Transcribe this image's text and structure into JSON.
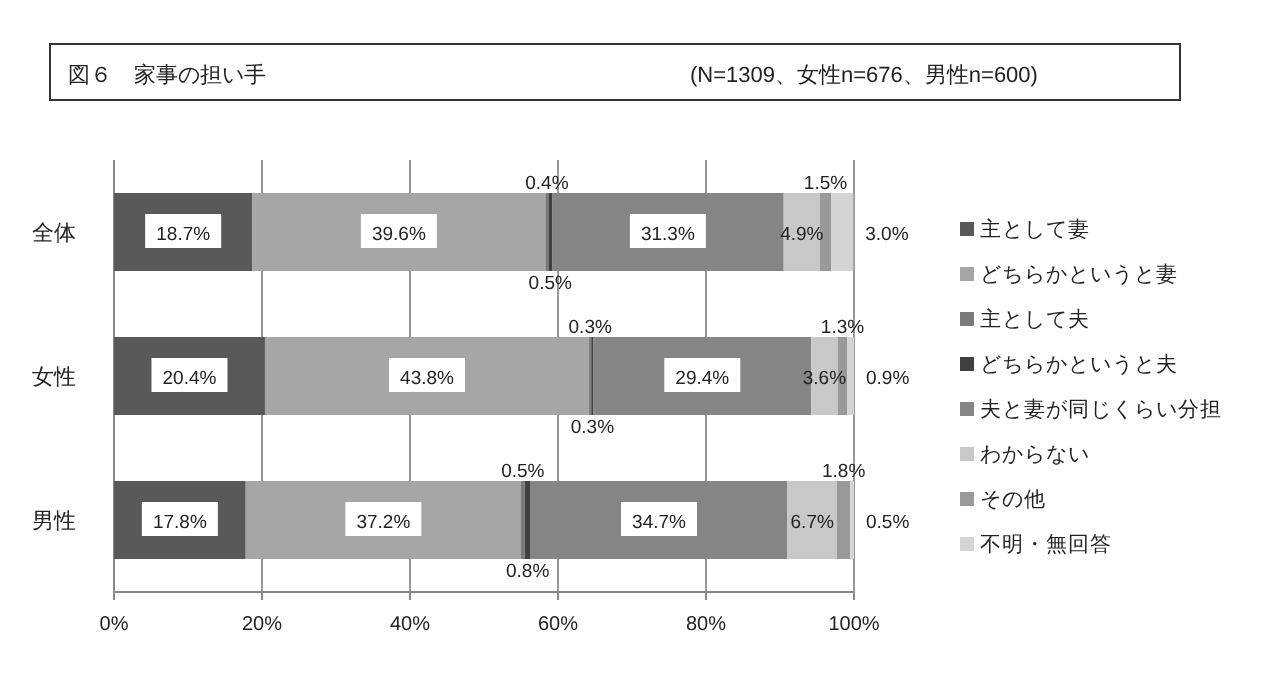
{
  "chart_data": {
    "type": "bar",
    "orientation": "horizontal",
    "stacked": true,
    "title": "図６　家事の担い手",
    "subtitle": "(N=1309、女性n=676、男性n=600)",
    "categories": [
      "全体",
      "女性",
      "男性"
    ],
    "series": [
      {
        "name": "主として妻",
        "color": "#595959",
        "values": [
          18.7,
          20.4,
          17.8
        ],
        "value_labels": [
          "18.7%",
          "20.4%",
          "17.8%"
        ]
      },
      {
        "name": "どちらかというと妻",
        "color": "#a6a6a6",
        "values": [
          39.6,
          43.8,
          37.2
        ],
        "value_labels": [
          "39.6%",
          "43.8%",
          "37.2%"
        ]
      },
      {
        "name": "主として夫",
        "color": "#7a7a7a",
        "values": [
          0.4,
          0.3,
          0.5
        ],
        "value_labels": [
          "0.4%",
          "0.3%",
          "0.5%"
        ]
      },
      {
        "name": "どちらかというと夫",
        "color": "#404040",
        "values": [
          0.5,
          0.3,
          0.8
        ],
        "value_labels": [
          "0.5%",
          "0.3%",
          "0.8%"
        ]
      },
      {
        "name": "夫と妻が同じくらい分担",
        "color": "#858585",
        "values": [
          31.3,
          29.4,
          34.7
        ],
        "value_labels": [
          "31.3%",
          "29.4%",
          "34.7%"
        ]
      },
      {
        "name": "わからない",
        "color": "#c8c8c8",
        "values": [
          4.9,
          3.6,
          6.7
        ],
        "value_labels": [
          "4.9%",
          "3.6%",
          "6.7%"
        ]
      },
      {
        "name": "その他",
        "color": "#999999",
        "values": [
          1.5,
          1.3,
          1.8
        ],
        "value_labels": [
          "1.5%",
          "1.3%",
          "1.8%"
        ]
      },
      {
        "name": "不明・無回答",
        "color": "#d4d4d4",
        "values": [
          3.0,
          0.9,
          0.5
        ],
        "value_labels": [
          "3.0%",
          "0.9%",
          "0.5%"
        ]
      }
    ],
    "xlim": [
      0,
      100
    ],
    "xticks": [
      {
        "value": 0,
        "label": "0%"
      },
      {
        "value": 20,
        "label": "20%"
      },
      {
        "value": 40,
        "label": "40%"
      },
      {
        "value": 60,
        "label": "60%"
      },
      {
        "value": 80,
        "label": "80%"
      },
      {
        "value": 100,
        "label": "100%"
      }
    ],
    "grid": "x",
    "legend": "right"
  }
}
